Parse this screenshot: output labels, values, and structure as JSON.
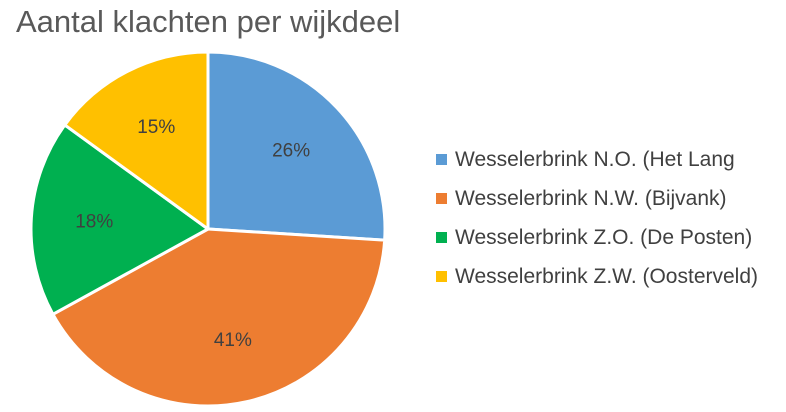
{
  "chart_data": {
    "type": "pie",
    "title": "Aantal klachten per wijkdeel",
    "categories": [
      "Wesselerbrink N.O. (Het Lang",
      "Wesselerbrink N.W. (Bijvank)",
      "Wesselerbrink Z.O. (De Posten)",
      "Wesselerbrink Z.W. (Oosterveld)"
    ],
    "values": [
      26,
      41,
      18,
      15
    ],
    "data_labels": [
      "26%",
      "41%",
      "18%",
      "15%"
    ],
    "colors": [
      "#5B9BD5",
      "#ED7D31",
      "#00B050",
      "#FFC000"
    ],
    "legend_position": "right"
  }
}
